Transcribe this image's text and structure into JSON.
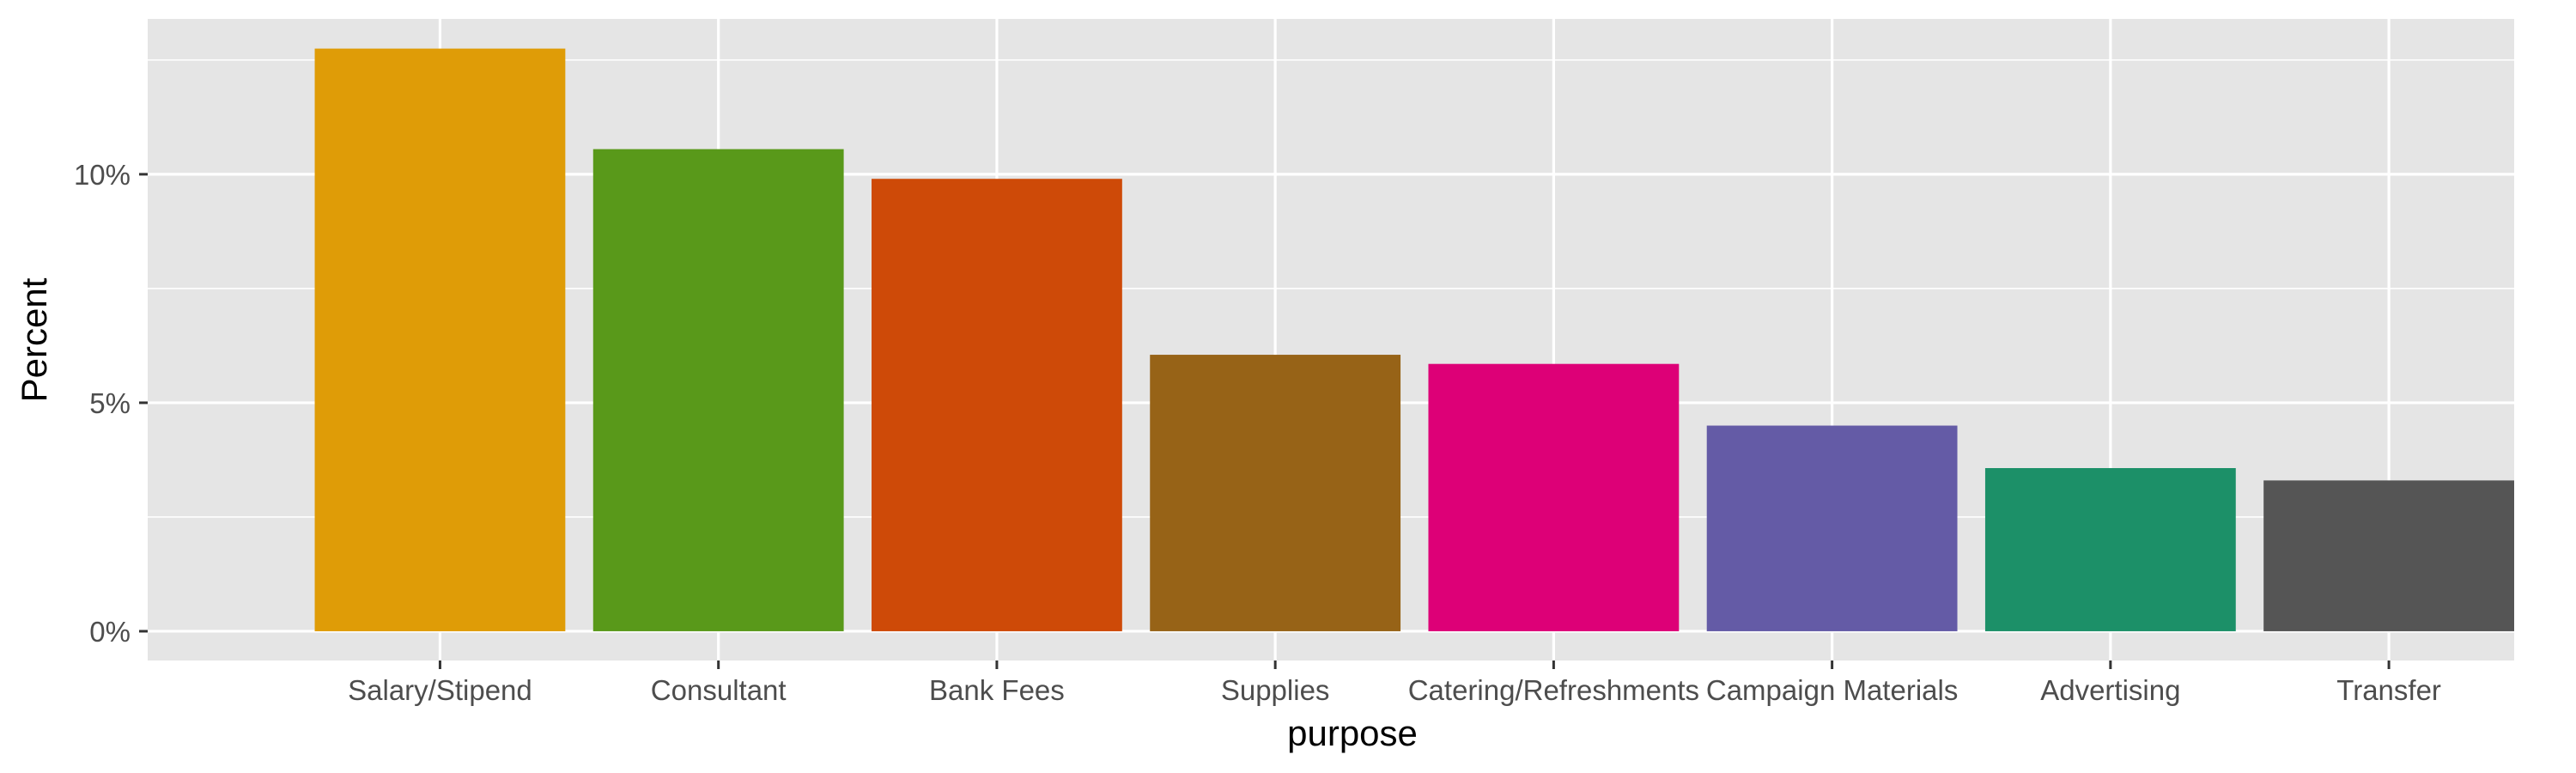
{
  "chart_data": {
    "type": "bar",
    "title": "",
    "xlabel": "purpose",
    "ylabel": "Percent",
    "categories": [
      "Salary/Stipend",
      "Consultant",
      "Bank Fees",
      "Supplies",
      "Catering/Refreshments",
      "Campaign Materials",
      "Advertising",
      "Transfer"
    ],
    "values": [
      12.75,
      10.55,
      9.9,
      6.05,
      5.85,
      4.5,
      3.57,
      3.3
    ],
    "colors": [
      "#DF9C07",
      "#59991A",
      "#CE4A08",
      "#976317",
      "#DD0077",
      "#645BA6",
      "#1C9068",
      "#555555"
    ],
    "ylim": [
      -0.64,
      13.4
    ],
    "y_ticks": [
      0,
      5,
      10
    ],
    "y_tick_labels": [
      "0%",
      "5%",
      "10%"
    ],
    "grid": true,
    "legend": "none",
    "panel_background": "#E5E5E5",
    "grid_color": "#FFFFFF"
  }
}
